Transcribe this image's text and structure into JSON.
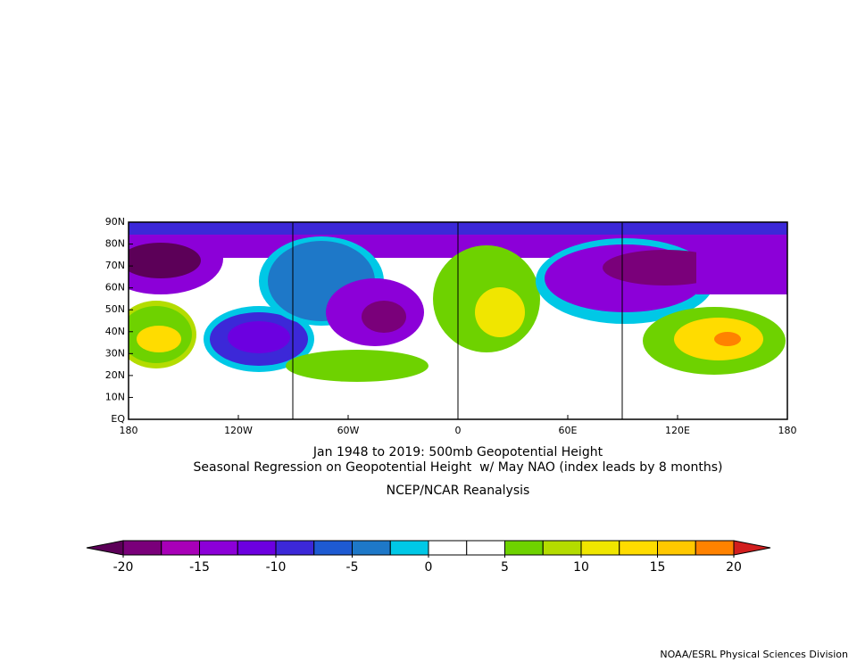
{
  "map": {
    "lat_ticks": [
      {
        "value": 90,
        "label": "90N"
      },
      {
        "value": 80,
        "label": "80N"
      },
      {
        "value": 70,
        "label": "70N"
      },
      {
        "value": 60,
        "label": "60N"
      },
      {
        "value": 50,
        "label": "50N"
      },
      {
        "value": 40,
        "label": "40N"
      },
      {
        "value": 30,
        "label": "30N"
      },
      {
        "value": 20,
        "label": "20N"
      },
      {
        "value": 10,
        "label": "10N"
      },
      {
        "value": 0,
        "label": "EQ"
      }
    ],
    "latlim": [
      0,
      90
    ],
    "lon_ticks": [
      {
        "value": -180,
        "label": "180"
      },
      {
        "value": -120,
        "label": "120W"
      },
      {
        "value": -60,
        "label": "60W"
      },
      {
        "value": 0,
        "label": "0"
      },
      {
        "value": 60,
        "label": "60E"
      },
      {
        "value": 120,
        "label": "120E"
      },
      {
        "value": 180,
        "label": "180"
      }
    ],
    "lonlim": [
      -180,
      180
    ],
    "title_lines": [
      "Jan 1948 to 2019: 500mb Geopotential Height",
      "Seasonal Regression on Geopotential Height  w/ May NAO (index leads by 8 months)"
    ],
    "source": "NCEP/NCAR Reanalysis"
  },
  "colorbar": {
    "range": [
      -20,
      20
    ],
    "ticks": [
      -20,
      -15,
      -10,
      -5,
      0,
      5,
      10,
      15,
      20
    ],
    "under_color": "#5c0058",
    "over_color": "#d21e1e",
    "colors": [
      "#7a007a",
      "#a800b8",
      "#8c00d8",
      "#6c00e0",
      "#3c28d8",
      "#1e5ad2",
      "#1e78c8",
      "#00c8e6",
      "#ffffff",
      "#ffffff",
      "#6ed200",
      "#b4dc00",
      "#f0e600",
      "#ffdc00",
      "#ffc800",
      "#ff8200"
    ]
  },
  "footer": "NOAA/ESRL Physical Sciences Division"
}
